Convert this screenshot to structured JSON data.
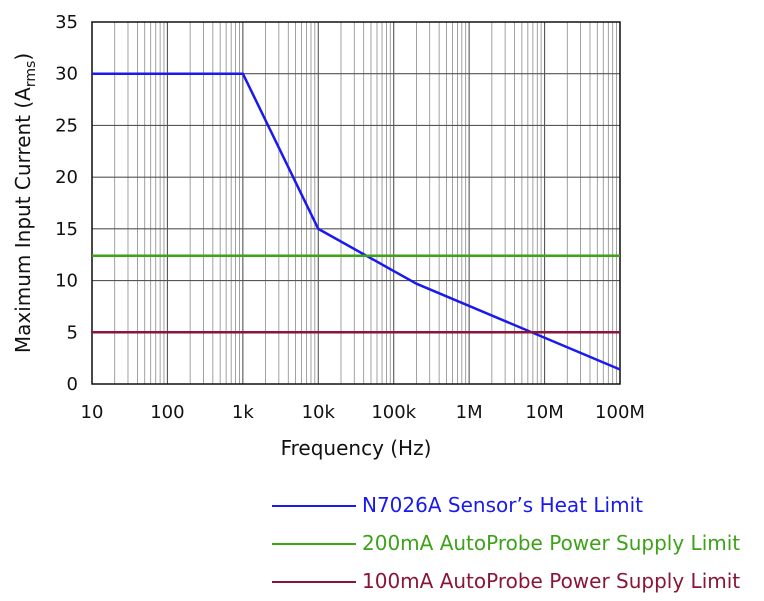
{
  "chart_data": {
    "type": "line",
    "title": "",
    "xlabel": "Frequency (Hz)",
    "ylabel_main": "Maximum Input Current (A",
    "ylabel_sub": "rms",
    "ylabel_close": ")",
    "xscale": "log",
    "xlim": [
      10,
      100000000
    ],
    "ylim": [
      0,
      35
    ],
    "grid": true,
    "legend_position": "bottom",
    "x_ticks": [
      {
        "value": 10,
        "label": "10"
      },
      {
        "value": 100,
        "label": "100"
      },
      {
        "value": 1000,
        "label": "1k"
      },
      {
        "value": 10000,
        "label": "10k"
      },
      {
        "value": 100000,
        "label": "100k"
      },
      {
        "value": 1000000,
        "label": "1M"
      },
      {
        "value": 10000000,
        "label": "10M"
      },
      {
        "value": 100000000,
        "label": "100M"
      }
    ],
    "y_ticks": [
      {
        "value": 0,
        "label": "0"
      },
      {
        "value": 5,
        "label": "5"
      },
      {
        "value": 10,
        "label": "10"
      },
      {
        "value": 15,
        "label": "15"
      },
      {
        "value": 20,
        "label": "20"
      },
      {
        "value": 25,
        "label": "25"
      },
      {
        "value": 30,
        "label": "30"
      },
      {
        "value": 35,
        "label": "35"
      }
    ],
    "series": [
      {
        "name": "N7026A Sensor’s Heat Limit",
        "color": "#1a1aee",
        "points": [
          [
            10,
            30
          ],
          [
            1000,
            30
          ],
          [
            10000,
            15
          ],
          [
            200000,
            9.7
          ],
          [
            100000000,
            1.4
          ]
        ]
      },
      {
        "name": "200mA AutoProbe Power Supply Limit",
        "color": "#3da21a",
        "points": [
          [
            10,
            12.4
          ],
          [
            100000000,
            12.4
          ]
        ]
      },
      {
        "name": "100mA AutoProbe Power Supply Limit",
        "color": "#8b1538",
        "points": [
          [
            10,
            5
          ],
          [
            100000000,
            5
          ]
        ]
      }
    ]
  }
}
